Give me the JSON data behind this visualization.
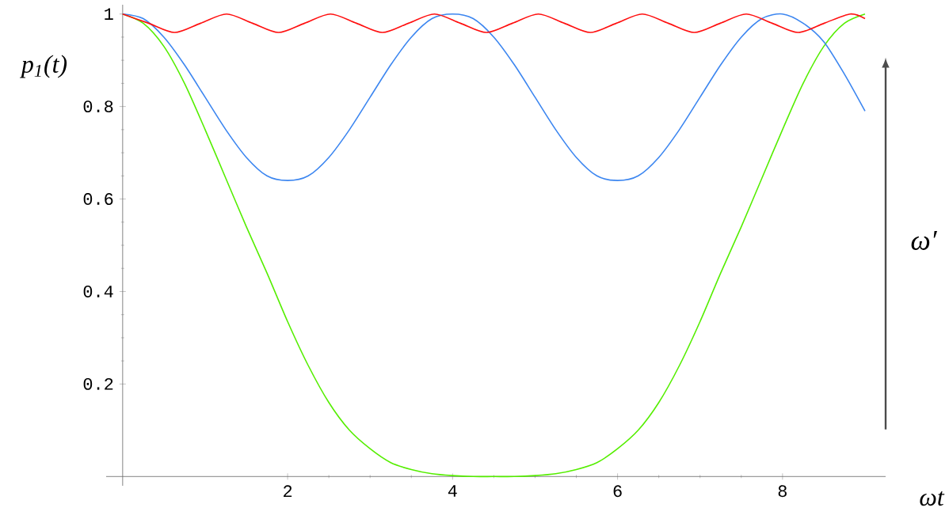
{
  "chart_data": {
    "type": "line",
    "xlabel": "ωt",
    "ylabel": "p$_{1}$(t)",
    "annotations": [
      "ω′"
    ],
    "x": [
      0,
      0.25,
      0.5,
      0.75,
      1,
      1.25,
      1.5,
      1.75,
      2,
      2.25,
      2.5,
      2.75,
      3,
      3.25,
      3.5,
      3.75,
      4,
      4.25,
      4.5,
      4.75,
      5,
      5.25,
      5.5,
      5.75,
      6,
      6.25,
      6.5,
      6.75,
      7,
      7.25,
      7.5,
      7.75,
      8,
      8.25,
      8.5,
      8.75,
      9
    ],
    "series": [
      {
        "color": "#55ee00",
        "values": [
          1,
          0.98,
          0.93,
          0.85,
          0.75,
          0.645,
          0.54,
          0.44,
          0.335,
          0.24,
          0.16,
          0.1,
          0.06,
          0.03,
          0.015,
          0.006,
          0.002,
          0,
          0,
          0,
          0.002,
          0.006,
          0.015,
          0.03,
          0.06,
          0.1,
          0.16,
          0.24,
          0.335,
          0.44,
          0.54,
          0.645,
          0.75,
          0.85,
          0.93,
          0.98,
          1
        ]
      },
      {
        "color": "#3c86f0",
        "values": [
          1,
          0.99,
          0.95,
          0.89,
          0.82,
          0.75,
          0.69,
          0.65,
          0.64,
          0.65,
          0.69,
          0.75,
          0.82,
          0.89,
          0.95,
          0.99,
          1,
          0.99,
          0.95,
          0.89,
          0.82,
          0.75,
          0.69,
          0.65,
          0.64,
          0.65,
          0.69,
          0.75,
          0.82,
          0.89,
          0.95,
          0.99,
          1,
          0.98,
          0.94,
          0.87,
          0.79
        ]
      },
      {
        "color": "#ff1010",
        "x": [
          0,
          0.315,
          0.63,
          0.945,
          1.26,
          1.575,
          1.89,
          2.205,
          2.52,
          2.835,
          3.15,
          3.465,
          3.78,
          4.095,
          4.41,
          4.725,
          5.04,
          5.355,
          5.67,
          5.985,
          6.3,
          6.615,
          6.93,
          7.245,
          7.56,
          7.875,
          8.19,
          8.505,
          8.82,
          9
        ],
        "values": [
          1,
          0.98,
          0.96,
          0.98,
          1,
          0.98,
          0.96,
          0.98,
          1,
          0.98,
          0.96,
          0.98,
          1,
          0.98,
          0.96,
          0.98,
          1,
          0.98,
          0.96,
          0.98,
          1,
          0.98,
          0.96,
          0.98,
          1,
          0.98,
          0.96,
          0.98,
          1,
          0.99
        ]
      }
    ],
    "xlim": [
      -0.2,
      9.25
    ],
    "ylim": [
      -0.02,
      1.02
    ],
    "xticks": [
      2,
      4,
      6,
      8
    ],
    "yticks": [
      0.2,
      0.4,
      0.6,
      0.8,
      1
    ],
    "grid": false,
    "marker": "none"
  }
}
